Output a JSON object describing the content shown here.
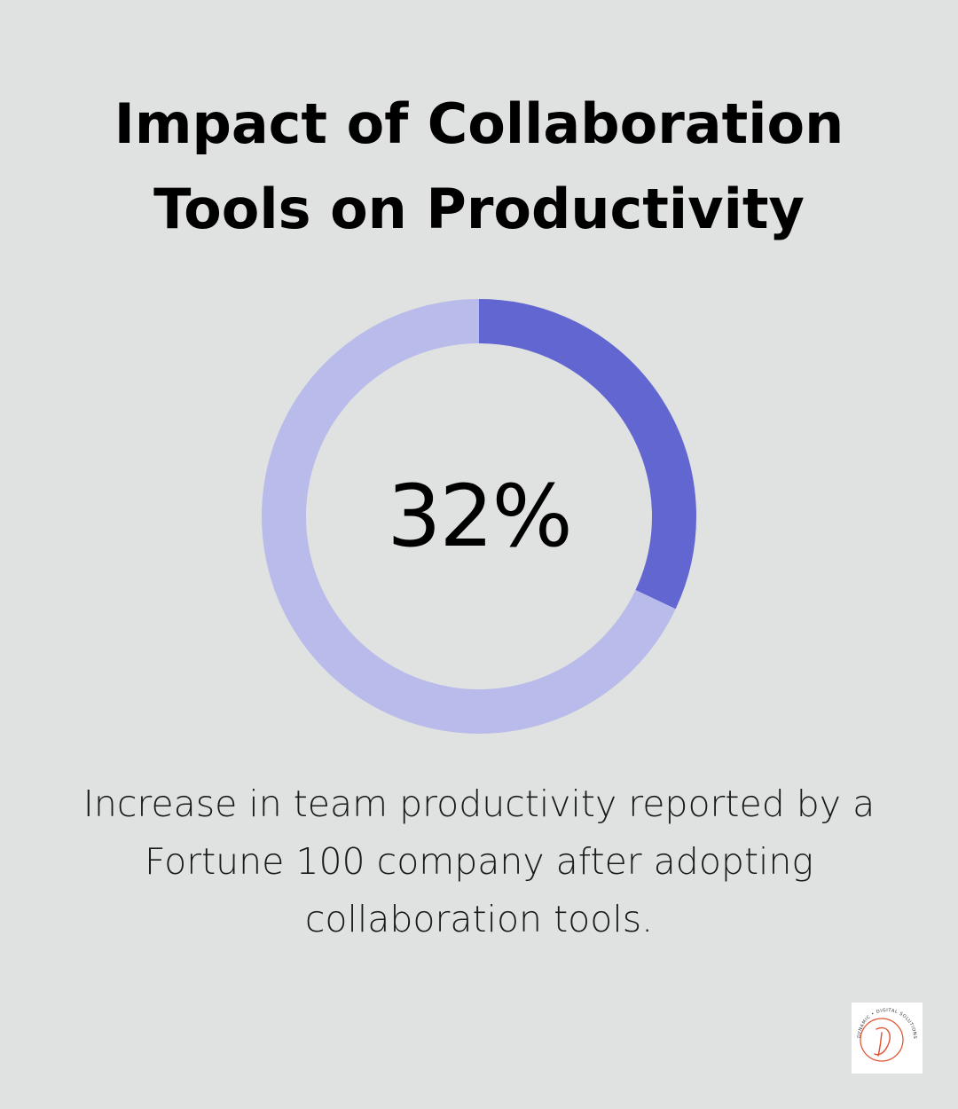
{
  "title_lines": [
    "Impact of Collaboration",
    "Tools on Productivity"
  ],
  "chart_data": {
    "type": "pie",
    "style": "donut",
    "values": [
      32,
      68
    ],
    "labels": [
      "",
      ""
    ],
    "center_label": "32%",
    "colors": {
      "value": "#6266d1",
      "remainder": "#b9bbea"
    }
  },
  "caption_lines": [
    "Increase in team productivity reported by a",
    "Fortune 100 company after adopting",
    "collaboration tools."
  ],
  "logo": {
    "ring_text": "DYNAMIC • DIGITAL SOLUTIONS",
    "accent_color": "#e0522e"
  }
}
